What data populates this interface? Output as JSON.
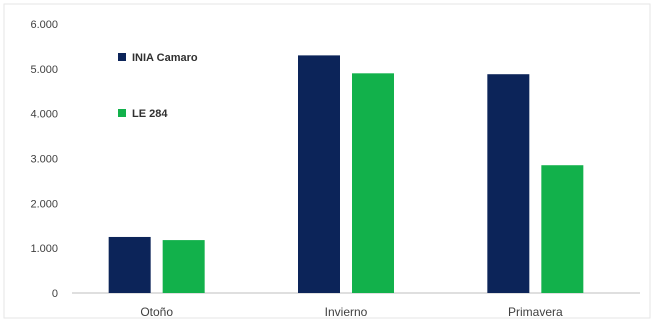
{
  "chart_data": {
    "type": "bar",
    "title": "",
    "xlabel": "",
    "ylabel": "",
    "categories": [
      "Otoño",
      "Invierno",
      "Primavera"
    ],
    "series": [
      {
        "name": "INIA Camaro",
        "color": "#0c2459",
        "values": [
          1250,
          5300,
          4880
        ]
      },
      {
        "name": "LE 284",
        "color": "#12b14b",
        "values": [
          1180,
          4900,
          2850
        ]
      }
    ],
    "ylim": [
      0,
      6000
    ],
    "yticks": [
      0,
      1000,
      2000,
      3000,
      4000,
      5000,
      6000
    ],
    "ytick_labels": [
      "0",
      "1.000",
      "2.000",
      "3.000",
      "4.000",
      "5.000",
      "6.000"
    ],
    "grid": false,
    "legend": "top-left"
  }
}
